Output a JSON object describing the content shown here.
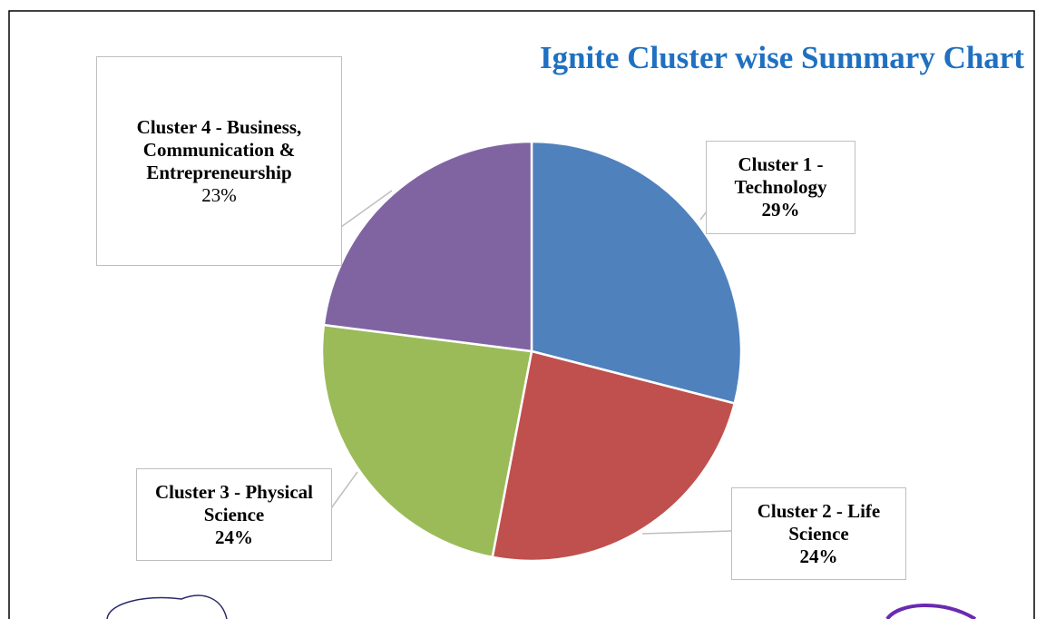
{
  "chart_data": {
    "type": "pie",
    "title": "Ignite Cluster wise Summary Chart",
    "categories": [
      "Cluster 1 - Technology",
      "Cluster 2 - Life Science",
      "Cluster 3 - Physical Science",
      "Cluster 4 - Business, Communication & Entrepreneurship"
    ],
    "values": [
      29,
      24,
      24,
      23
    ],
    "value_labels": [
      "29%",
      "24%",
      "24%",
      "23%"
    ],
    "colors": [
      "#4f81bd",
      "#c0504d",
      "#9bbb59",
      "#8064a2"
    ]
  }
}
